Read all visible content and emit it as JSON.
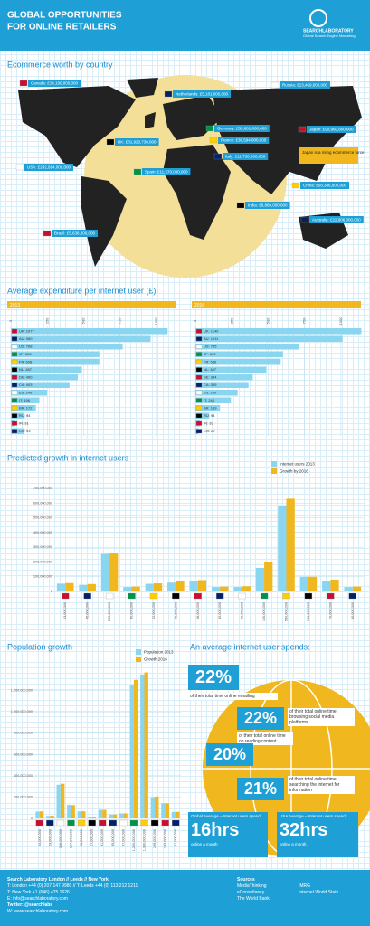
{
  "header": {
    "title_line1": "GLOBAL OPPORTUNITIES",
    "title_line2": "FOR ONLINE RETAILERS",
    "logo": "SEARCHLABORATORY",
    "tagline": "Global Search Engine Marketing"
  },
  "map": {
    "title": "Ecommerce worth by country",
    "labels": [
      "Canada: £14,190,000,000",
      "Netherlands: £5,181,000,000",
      "Russia: £13,469,000,000",
      "Germany: £39,681,000,000",
      "France: £36,594,000,000",
      "UK: £81,920,730,000",
      "Japan: £90,960,800,000",
      "Italy: £11,730,000,000",
      "USA: £242,914,000,000",
      "Spain: £11,270,000,000",
      "China: £58,386,000,000",
      "India: £9,860,000,000",
      "Brazil: £5,638,000,000",
      "Australia: £22,606,000,000"
    ],
    "note": "Japan is a rising ecommerce force"
  },
  "sections": {
    "expenditure": "Average expenditure per internet user (£)"
  },
  "chart_data": [
    {
      "type": "bar",
      "orientation": "horizontal",
      "title": "2013",
      "color": "#8ad5f0",
      "values": [
        1077,
        960,
        768,
        608,
        608,
        487,
        460,
        403,
        249,
        196,
        172,
        94,
        31,
        93
      ],
      "value_labels": [
        "UK: 1077",
        "AU: 960",
        "US: 768",
        "JP: 608",
        "FR: 608",
        "NL: 487",
        "DE: 460",
        "CA: 403",
        "ES: 249",
        "IT: 196",
        "BR: 172",
        "RU: 94",
        "IN: 31",
        "CN: 93"
      ],
      "xlim": [
        0,
        1100
      ],
      "xticks": [
        0,
        250,
        500,
        750,
        1000
      ],
      "grid": true
    },
    {
      "type": "bar",
      "orientation": "horizontal",
      "title": "2016",
      "color": "#8ad5f0",
      "values": [
        1140,
        1011,
        715,
        602,
        586,
        487,
        394,
        365,
        290,
        244,
        169,
        94,
        33,
        22
      ],
      "value_labels": [
        "UK: 1140",
        "AU: 1011",
        "US: 715",
        "JP: 602",
        "FR: 586",
        "NL: 487",
        "DE: 394",
        "CA: 365",
        "ES: 290",
        "IT: 244",
        "BR: 169",
        "RU: 94",
        "IN: 33",
        "CN: 22"
      ],
      "xlim": [
        0,
        1100
      ],
      "xticks": [
        0,
        250,
        500,
        750,
        1000
      ],
      "grid": true
    },
    {
      "type": "bar",
      "orientation": "vertical",
      "title": "Predicted growth in internet users",
      "categories": [
        "53,000,000",
        "45,000,000",
        "255,000,000",
        "30,000,000",
        "52,000,000",
        "60,000,000",
        "68,000,000",
        "30,000,000",
        "30,000,000",
        "160,000,000",
        "580,000,000",
        "100,000,000",
        "70,000,000",
        "30,000,000"
      ],
      "series": [
        {
          "name": "Internet users 2013",
          "color": "#8ad5f0",
          "values": [
            53000000,
            45000000,
            255000000,
            30000000,
            52000000,
            60000000,
            68000000,
            30000000,
            30000000,
            160000000,
            580000000,
            100000000,
            70000000,
            30000000
          ]
        },
        {
          "name": "Growth by 2016",
          "color": "#f0b71e",
          "values": [
            57000000,
            50000000,
            262000000,
            33000000,
            55000000,
            72000000,
            77000000,
            33000000,
            35000000,
            200000000,
            630000000,
            100000000,
            80000000,
            33000000
          ]
        }
      ],
      "ylim": [
        0,
        700000000
      ],
      "yticks": [
        0,
        {
          "value": 100000000,
          "label": "100,000,000"
        },
        {
          "value": 200000000,
          "label": "200,000,000"
        },
        {
          "value": 300000000,
          "label": "300,000,000"
        },
        {
          "value": 400000000,
          "label": "400,000,000"
        },
        {
          "value": 500000000,
          "label": "500,000,000"
        },
        {
          "value": 600000000,
          "label": "600,000,000"
        },
        {
          "value": 700000000,
          "label": "700,000,000"
        }
      ],
      "grid": true
    },
    {
      "type": "bar",
      "orientation": "vertical",
      "title": "Population growth",
      "categories": [
        "64,000,000",
        "23,000,000",
        "316,000,000",
        "127,000,000",
        "66,000,000",
        "17,000,000",
        "81,000,000",
        "35,000,000",
        "47,000,000",
        "1,250,000,000",
        "1,350,000,000",
        "199,000,000",
        "143,000,000",
        "61,000,000"
      ],
      "series": [
        {
          "name": "Population 2013",
          "color": "#8ad5f0",
          "values": [
            64000000,
            23000000,
            316000000,
            127000000,
            66000000,
            17000000,
            81000000,
            35000000,
            47000000,
            1250000000,
            1350000000,
            199000000,
            143000000,
            61000000
          ]
        },
        {
          "name": "Growth 2016",
          "color": "#f0b71e",
          "values": [
            66000000,
            25000000,
            325000000,
            125000000,
            67000000,
            17000000,
            80000000,
            37000000,
            47000000,
            1300000000,
            1370000000,
            205000000,
            142000000,
            62000000
          ]
        }
      ],
      "ylim": [
        0,
        1400000000
      ],
      "yticks": [
        0,
        {
          "value": 200000000,
          "label": "200,000,000"
        },
        {
          "value": 400000000,
          "label": "400,000,000"
        },
        {
          "value": 600000000,
          "label": "600,000,000"
        },
        {
          "value": 800000000,
          "label": "800,000,000"
        },
        {
          "value": 1000000000,
          "label": "1,000,000,000"
        },
        {
          "value": 1200000000,
          "label": "1,200,000,000"
        }
      ],
      "grid": true
    }
  ],
  "spend": {
    "title": "An average internet user spends:",
    "items": [
      {
        "pct": "22%",
        "text": "of their total time online emailing"
      },
      {
        "pct": "22%",
        "text": "of their total online time browsing social media platforms"
      },
      {
        "pct": "20%",
        "text": "of their total online time on reading content"
      },
      {
        "pct": "21%",
        "text": "of their total online time searching the internet for information"
      }
    ],
    "hours": [
      {
        "label": "Global Average – Internet users spend:",
        "value": "16hrs",
        "unit": "online a month"
      },
      {
        "label": "USA Average – Internet users spend:",
        "value": "32hrs",
        "unit": "online a month"
      }
    ]
  },
  "footer": {
    "lines": [
      "Search Laboratory London // Leeds // New York",
      "T: London +44 (0) 207 147 9980 // T: Leeds +44 (0) 113 212 1211",
      "T: New York +1 (646) 475 1626",
      "E: info@searchlaboratory.com",
      "Twitter: @searchlabs",
      "W: www.searchlaboratory.com"
    ],
    "sources_title": "Sources",
    "sources": [
      "MediaThinking",
      "eConsultancy",
      "The World Bank",
      "IMRG",
      "Internet World Stats"
    ]
  }
}
